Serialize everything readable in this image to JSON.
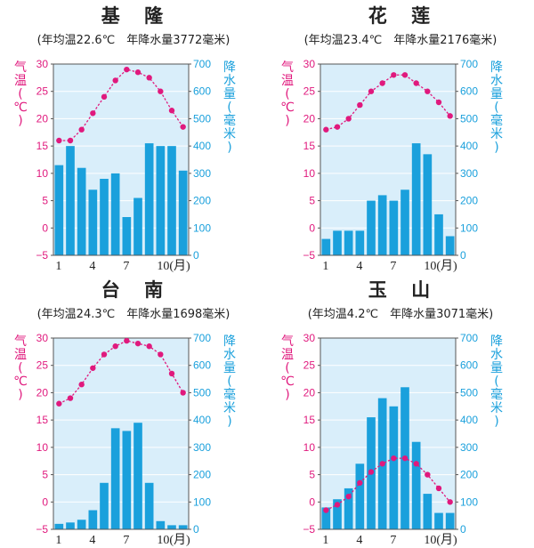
{
  "chart_data": [
    {
      "type": "bar",
      "title": "基　隆",
      "subtitle": "(年均温22.6℃　年降水量3772毫米)",
      "y_left_label": [
        "气",
        "温",
        "(",
        "℃",
        ")"
      ],
      "y_right_label": [
        "降",
        "水",
        "量",
        "(",
        "毫",
        "米",
        ")"
      ],
      "y_left_ticks": [
        "30",
        "25",
        "20",
        "15",
        "10",
        "5",
        "0",
        "−5"
      ],
      "y_right_ticks": [
        "700",
        "600",
        "500",
        "400",
        "300",
        "200",
        "100",
        "0"
      ],
      "x_ticks": [
        "1",
        "4",
        "7",
        "10(月)"
      ],
      "months": [
        1,
        2,
        3,
        4,
        5,
        6,
        7,
        8,
        9,
        10,
        11,
        12
      ],
      "temperature_c": [
        16,
        16,
        18,
        21,
        24,
        27,
        29,
        28.5,
        27.5,
        25,
        21.5,
        18.5
      ],
      "precipitation_mm": [
        330,
        400,
        320,
        240,
        280,
        300,
        140,
        210,
        410,
        400,
        400,
        310
      ],
      "temp_range": [
        -5,
        30
      ],
      "precip_range": [
        0,
        700
      ],
      "colors": {
        "temperature": "#e0197d",
        "precipitation": "#1aa0dc",
        "axis_left": "#e0197d",
        "axis_right": "#1aa0dc",
        "plot_bg": "#d9eefa",
        "grid": "#ffffff"
      }
    },
    {
      "type": "bar",
      "title": "花　莲",
      "subtitle": "(年均温23.4℃　年降水量2176毫米)",
      "y_left_label": [
        "气",
        "温",
        "(",
        "℃",
        ")"
      ],
      "y_right_label": [
        "降",
        "水",
        "量",
        "(",
        "毫",
        "米",
        ")"
      ],
      "y_left_ticks": [
        "30",
        "25",
        "20",
        "15",
        "10",
        "5",
        "0",
        "−5"
      ],
      "y_right_ticks": [
        "700",
        "600",
        "500",
        "400",
        "300",
        "200",
        "100",
        "0"
      ],
      "x_ticks": [
        "1",
        "4",
        "7",
        "10(月)"
      ],
      "months": [
        1,
        2,
        3,
        4,
        5,
        6,
        7,
        8,
        9,
        10,
        11,
        12
      ],
      "temperature_c": [
        18,
        18.5,
        20,
        22.5,
        25,
        26.5,
        28,
        28,
        26.5,
        25,
        23,
        20.5
      ],
      "precipitation_mm": [
        60,
        90,
        90,
        90,
        200,
        220,
        200,
        240,
        410,
        370,
        150,
        70
      ],
      "temp_range": [
        -5,
        30
      ],
      "precip_range": [
        0,
        700
      ],
      "colors": {
        "temperature": "#e0197d",
        "precipitation": "#1aa0dc",
        "axis_left": "#e0197d",
        "axis_right": "#1aa0dc",
        "plot_bg": "#d9eefa",
        "grid": "#ffffff"
      }
    },
    {
      "type": "bar",
      "title": "台　南",
      "subtitle": "(年均温24.3℃　年降水量1698毫米)",
      "y_left_label": [
        "气",
        "温",
        "(",
        "℃",
        ")"
      ],
      "y_right_label": [
        "降",
        "水",
        "量",
        "(",
        "毫",
        "米",
        ")"
      ],
      "y_left_ticks": [
        "30",
        "25",
        "20",
        "15",
        "10",
        "5",
        "0",
        "−5"
      ],
      "y_right_ticks": [
        "700",
        "600",
        "500",
        "400",
        "300",
        "200",
        "100",
        "0"
      ],
      "x_ticks": [
        "1",
        "4",
        "7",
        "10(月)"
      ],
      "months": [
        1,
        2,
        3,
        4,
        5,
        6,
        7,
        8,
        9,
        10,
        11,
        12
      ],
      "temperature_c": [
        18,
        19,
        21.5,
        24.5,
        27,
        28.5,
        29.5,
        29,
        28.5,
        27,
        23.5,
        20
      ],
      "precipitation_mm": [
        20,
        25,
        35,
        70,
        170,
        370,
        360,
        390,
        170,
        30,
        15,
        15
      ],
      "temp_range": [
        -5,
        30
      ],
      "precip_range": [
        0,
        700
      ],
      "colors": {
        "temperature": "#e0197d",
        "precipitation": "#1aa0dc",
        "axis_left": "#e0197d",
        "axis_right": "#1aa0dc",
        "plot_bg": "#d9eefa",
        "grid": "#ffffff"
      }
    },
    {
      "type": "bar",
      "title": "玉　山",
      "subtitle": "(年均温4.2℃　年降水量3071毫米)",
      "y_left_label": [
        "气",
        "温",
        "(",
        "℃",
        ")"
      ],
      "y_right_label": [
        "降",
        "水",
        "量",
        "(",
        "毫",
        "米",
        ")"
      ],
      "y_left_ticks": [
        "30",
        "25",
        "20",
        "15",
        "10",
        "5",
        "0",
        "−5"
      ],
      "y_right_ticks": [
        "700",
        "600",
        "500",
        "400",
        "300",
        "200",
        "100",
        "0"
      ],
      "x_ticks": [
        "1",
        "4",
        "7",
        "10(月)"
      ],
      "months": [
        1,
        2,
        3,
        4,
        5,
        6,
        7,
        8,
        9,
        10,
        11,
        12
      ],
      "temperature_c": [
        -1.5,
        -0.5,
        1,
        3.5,
        5.5,
        7,
        8,
        8,
        7,
        5,
        2.5,
        0
      ],
      "precipitation_mm": [
        80,
        110,
        150,
        240,
        410,
        480,
        450,
        520,
        320,
        130,
        60,
        60
      ],
      "temp_range": [
        -5,
        30
      ],
      "precip_range": [
        0,
        700
      ],
      "colors": {
        "temperature": "#e0197d",
        "precipitation": "#1aa0dc",
        "axis_left": "#e0197d",
        "axis_right": "#1aa0dc",
        "plot_bg": "#d9eefa",
        "grid": "#ffffff"
      }
    }
  ]
}
